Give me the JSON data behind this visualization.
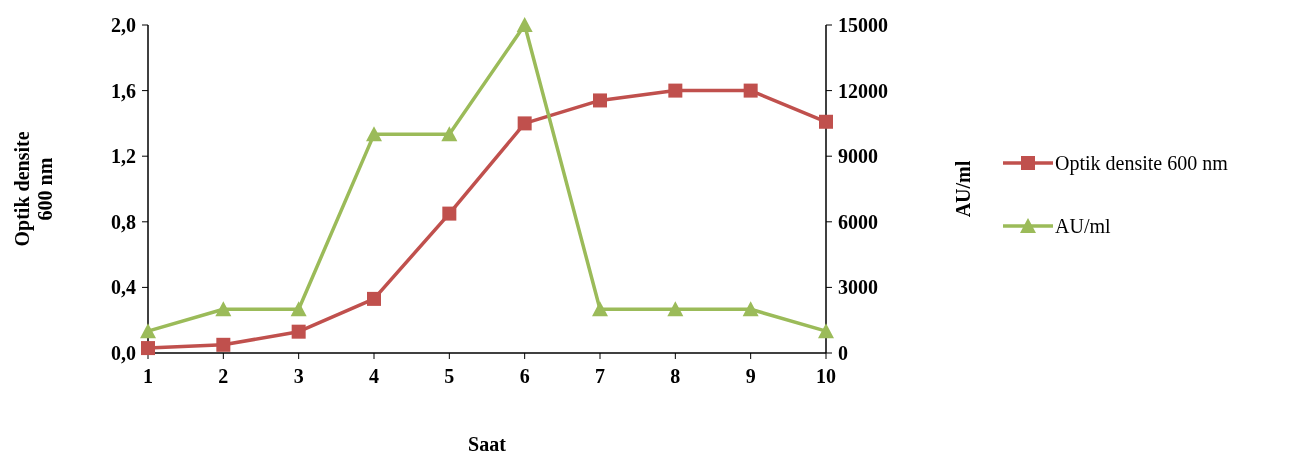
{
  "chart_data": {
    "type": "line",
    "xlabel": "Saat",
    "ylabel": "Optik densite\n600 nm",
    "y2label": "AU/ml",
    "x": [
      1,
      2,
      3,
      4,
      5,
      6,
      7,
      8,
      9,
      10
    ],
    "xlim": [
      1,
      10
    ],
    "xticks": [
      1,
      2,
      3,
      4,
      5,
      6,
      7,
      8,
      9,
      10
    ],
    "ylim": [
      0,
      2
    ],
    "yticks": [
      {
        "value": 0,
        "label": "0,0"
      },
      {
        "value": 0.4,
        "label": "0,4"
      },
      {
        "value": 0.8,
        "label": "0,8"
      },
      {
        "value": 1.2,
        "label": "1,2"
      },
      {
        "value": 1.6,
        "label": "1,6"
      },
      {
        "value": 2,
        "label": "2,0"
      }
    ],
    "y2lim": [
      0,
      15000
    ],
    "y2ticks": [
      0,
      3000,
      6000,
      9000,
      12000,
      15000
    ],
    "series": [
      {
        "name": "Optik densite 600 nm",
        "color": "#c0504d",
        "marker": "square",
        "values": [
          0.03,
          0.05,
          0.13,
          0.33,
          0.85,
          1.4,
          1.54,
          1.6,
          1.6,
          1.41
        ]
      },
      {
        "name": "AU/ml",
        "color": "#9bbb59",
        "marker": "triangle",
        "axis": "y2",
        "values": [
          1000,
          2000,
          2000,
          10000,
          10000,
          15000,
          2000,
          2000,
          2000,
          1000
        ]
      }
    ],
    "legend": "right",
    "grid": false
  }
}
